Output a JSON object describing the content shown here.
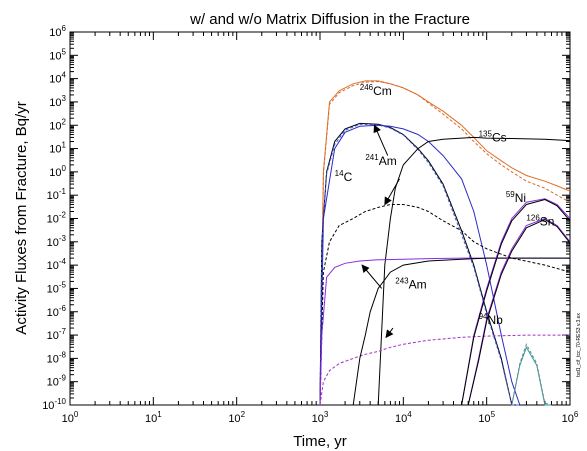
{
  "chart_data": {
    "type": "line",
    "title": "w/ and w/o Matrix Diffusion in the Fracture",
    "xlabel": "Time, yr",
    "ylabel": "Activity Fluxes from Fracture, Bq/yr",
    "x_scale": "log",
    "y_scale": "log",
    "xlim": [
      1,
      1000000
    ],
    "ylim": [
      1e-10,
      1000000
    ],
    "x_ticks": [
      {
        "base": "10",
        "exp": "0"
      },
      {
        "base": "10",
        "exp": "1"
      },
      {
        "base": "10",
        "exp": "2"
      },
      {
        "base": "10",
        "exp": "3"
      },
      {
        "base": "10",
        "exp": "4"
      },
      {
        "base": "10",
        "exp": "5"
      },
      {
        "base": "10",
        "exp": "6"
      }
    ],
    "y_ticks": [
      {
        "base": "10",
        "exp": "-10"
      },
      {
        "base": "10",
        "exp": "-9"
      },
      {
        "base": "10",
        "exp": "-8"
      },
      {
        "base": "10",
        "exp": "-7"
      },
      {
        "base": "10",
        "exp": "-6"
      },
      {
        "base": "10",
        "exp": "-5"
      },
      {
        "base": "10",
        "exp": "-4"
      },
      {
        "base": "10",
        "exp": "-3"
      },
      {
        "base": "10",
        "exp": "-2"
      },
      {
        "base": "10",
        "exp": "-1"
      },
      {
        "base": "10",
        "exp": "0"
      },
      {
        "base": "10",
        "exp": "1"
      },
      {
        "base": "10",
        "exp": "2"
      },
      {
        "base": "10",
        "exp": "3"
      },
      {
        "base": "10",
        "exp": "4"
      },
      {
        "base": "10",
        "exp": "5"
      },
      {
        "base": "10",
        "exp": "6"
      }
    ],
    "grid": false,
    "side_note": "tsd1_cif_tcc_70-RES3 v.3.ex",
    "labels": [
      {
        "mass": "246",
        "sym": "Cm",
        "x": 3000,
        "y": 2000
      },
      {
        "mass": "135",
        "sym": "Cs",
        "x": 80000,
        "y": 20
      },
      {
        "mass": "241",
        "sym": "Am",
        "x": 3500,
        "y": 2
      },
      {
        "mass": "14",
        "sym": "C",
        "x": 1500,
        "y": 0.4
      },
      {
        "mass": "59",
        "sym": "Ni",
        "x": 170000,
        "y": 0.05
      },
      {
        "mass": "126",
        "sym": "Sn",
        "x": 300000,
        "y": 0.005
      },
      {
        "mass": "243",
        "sym": "Am",
        "x": 8000,
        "y": 1e-05
      },
      {
        "mass": "94",
        "sym": "Nb",
        "x": 80000,
        "y": 3e-07
      }
    ],
    "arrows": [
      {
        "from": [
          6500,
          5
        ],
        "to": [
          4500,
          100
        ]
      },
      {
        "from": [
          9000,
          0.5
        ],
        "to": [
          6000,
          0.04
        ]
      },
      {
        "from": [
          5500,
          1e-05
        ],
        "to": [
          3200,
          0.0001
        ]
      },
      {
        "from": [
          7500,
          2e-07
        ],
        "to": [
          6200,
          8e-08
        ]
      }
    ],
    "series": [
      {
        "style": "solid-orange",
        "x": [
          1000,
          1100,
          1300,
          1700,
          2500,
          3500,
          5000,
          7000,
          10000,
          15000,
          20000,
          30000,
          50000,
          70000,
          100000,
          150000,
          200000,
          300000,
          500000,
          700000,
          1000000
        ],
        "y": [
          1e-10,
          1,
          1000,
          3000,
          6000,
          8000,
          8000,
          6000,
          4000,
          2000,
          1000,
          400,
          100,
          30,
          8,
          3,
          1.5,
          0.7,
          0.4,
          0.25,
          0.15
        ]
      },
      {
        "style": "dashed-orange",
        "x": [
          1000,
          1100,
          1300,
          1700,
          2500,
          3500,
          5000,
          7000,
          10000,
          15000,
          20000,
          30000,
          50000,
          70000,
          100000,
          150000,
          200000,
          300000,
          500000,
          700000,
          1000000
        ],
        "y": [
          1e-10,
          0.8,
          800,
          2500,
          5000,
          7000,
          7500,
          6000,
          4000,
          2000,
          900,
          300,
          70,
          20,
          6,
          2,
          1,
          0.4,
          0.2,
          0.1,
          0.05
        ]
      },
      {
        "style": "solid-black",
        "x": [
          1000,
          1050,
          1200,
          1500,
          2000,
          3000,
          5000,
          7000,
          10000,
          15000,
          20000,
          30000,
          50000,
          70000,
          100000,
          150000,
          200000,
          250000
        ],
        "y": [
          1e-10,
          0.001,
          1,
          20,
          70,
          120,
          110,
          80,
          40,
          10,
          3,
          0.3,
          0.003,
          0.0001,
          1e-06,
          1e-08,
          1e-10,
          1e-11
        ]
      },
      {
        "style": "dashed-blue",
        "x": [
          1000,
          1050,
          1200,
          1500,
          2000,
          3000,
          5000,
          7000,
          10000,
          15000,
          20000,
          30000,
          50000,
          70000,
          100000,
          150000,
          200000,
          250000
        ],
        "y": [
          1e-10,
          0.0008,
          0.8,
          15,
          60,
          110,
          105,
          75,
          38,
          9,
          2.5,
          0.25,
          0.002,
          8e-05,
          8e-07,
          8e-09,
          8e-11,
          8e-12
        ]
      },
      {
        "style": "solid-blue",
        "x": [
          1000,
          1100,
          1500,
          2000,
          3000,
          5000,
          7000,
          10000,
          15000,
          20000,
          30000,
          50000,
          70000,
          100000,
          150000,
          200000,
          250000
        ],
        "y": [
          1e-10,
          0.01,
          10,
          50,
          90,
          100,
          90,
          70,
          40,
          20,
          5,
          0.5,
          0.02,
          0.0001,
          1e-07,
          1e-09,
          1e-11
        ]
      },
      {
        "style": "solid-black",
        "x": [
          5000,
          6000,
          7000,
          8000,
          10000,
          15000,
          20000,
          30000,
          50000,
          70000,
          100000,
          200000,
          500000,
          1000000
        ],
        "y": [
          1e-10,
          0.0001,
          0.01,
          0.2,
          2,
          10,
          20,
          25,
          28,
          30,
          28,
          27,
          25,
          22
        ]
      },
      {
        "style": "dashed-black",
        "x": [
          1000,
          1100,
          1300,
          1700,
          2500,
          3500,
          5000,
          7000,
          10000,
          15000,
          20000,
          30000,
          50000,
          70000,
          100000,
          200000,
          500000,
          1000000
        ],
        "y": [
          1e-10,
          5e-05,
          0.001,
          0.005,
          0.01,
          0.02,
          0.03,
          0.04,
          0.04,
          0.03,
          0.02,
          0.008,
          0.003,
          0.001,
          0.0005,
          0.0002,
          0.0001,
          5e-05
        ]
      },
      {
        "style": "solid-purple",
        "x": [
          1000,
          1050,
          1200,
          1500,
          2000,
          3000,
          5000,
          10000,
          20000,
          50000,
          100000,
          300000,
          1000000
        ],
        "y": [
          1e-10,
          1e-07,
          3e-05,
          8e-05,
          0.00012,
          0.00015,
          0.00017,
          0.00018,
          0.00019,
          0.0002,
          0.0002,
          0.0002,
          0.0002
        ]
      },
      {
        "style": "dashed-purple",
        "x": [
          1000,
          1100,
          1300,
          1700,
          2500,
          3500,
          5000,
          7000,
          10000,
          20000,
          50000,
          100000,
          300000,
          1000000
        ],
        "y": [
          1e-10,
          1e-09,
          3e-09,
          6e-09,
          1e-08,
          1.5e-08,
          2e-08,
          3e-08,
          4e-08,
          6e-08,
          8e-08,
          9e-08,
          1e-07,
          1e-07
        ]
      },
      {
        "style": "solid-black",
        "x": [
          2500,
          3000,
          3500,
          4000,
          5000,
          7000,
          10000,
          20000,
          50000,
          100000,
          300000,
          1000000
        ],
        "y": [
          1e-10,
          1e-08,
          1e-07,
          1e-06,
          1e-05,
          5e-05,
          0.0001,
          0.00015,
          0.00018,
          0.0002,
          0.0002,
          0.0002
        ]
      },
      {
        "style": "solid-purple",
        "x": [
          50000,
          70000,
          100000,
          150000,
          200000,
          300000,
          500000,
          700000,
          1000000
        ],
        "y": [
          1e-10,
          1e-07,
          1e-05,
          0.001,
          0.01,
          0.05,
          0.07,
          0.04,
          0.01
        ]
      },
      {
        "style": "solid-black",
        "x": [
          50000,
          70000,
          100000,
          150000,
          200000,
          300000,
          500000,
          700000,
          1000000
        ],
        "y": [
          1e-10,
          8e-08,
          8e-06,
          0.0008,
          0.008,
          0.04,
          0.065,
          0.035,
          0.008
        ]
      },
      {
        "style": "solid-purple",
        "x": [
          60000,
          80000,
          100000,
          150000,
          200000,
          300000,
          500000,
          700000,
          1000000
        ],
        "y": [
          1e-10,
          1e-08,
          5e-07,
          5e-05,
          0.0005,
          0.005,
          0.01,
          0.005,
          0.001
        ]
      },
      {
        "style": "solid-black",
        "x": [
          60000,
          80000,
          100000,
          150000,
          200000,
          300000,
          500000,
          700000,
          1000000
        ],
        "y": [
          1e-10,
          8e-09,
          4e-07,
          4e-05,
          0.0004,
          0.004,
          0.009,
          0.0045,
          0.0009
        ]
      },
      {
        "style": "solid-teal",
        "x": [
          200000,
          250000,
          300000,
          400000,
          500000,
          600000
        ],
        "y": [
          1e-10,
          5e-09,
          3e-08,
          5e-09,
          1e-10,
          1e-11
        ]
      },
      {
        "style": "dashed-gray",
        "x": [
          200000,
          250000,
          300000,
          400000,
          500000,
          600000
        ],
        "y": [
          1e-10,
          6e-09,
          4e-08,
          6e-09,
          1.2e-10,
          1e-11
        ]
      }
    ]
  }
}
